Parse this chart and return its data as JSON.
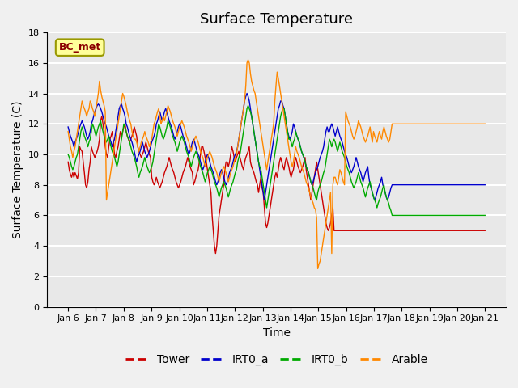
{
  "title": "Surface Temperature",
  "xlabel": "Time",
  "ylabel": "Surface Temperature (C)",
  "ylim": [
    0,
    18
  ],
  "annotation": "BC_met",
  "series_names": [
    "Tower",
    "IRT0_a",
    "IRT0_b",
    "Arable"
  ],
  "series_colors": [
    "#cc0000",
    "#0000cc",
    "#00aa00",
    "#ff8800"
  ],
  "x_tick_labels": [
    "Jan 6",
    "Jan 7",
    "Jan 8",
    "Jan 9",
    "Jan 10",
    "Jan 11",
    "Jan 12",
    "Jan 13",
    "Jan 14",
    "Jan 15",
    "Jan 16",
    "Jan 17",
    "Jan 18",
    "Jan 19",
    "Jan 20",
    "Jan 21"
  ],
  "plot_bg_color": "#e8e8e8",
  "grid_color": "#ffffff",
  "title_fontsize": 13,
  "label_fontsize": 10,
  "tick_fontsize": 8
}
